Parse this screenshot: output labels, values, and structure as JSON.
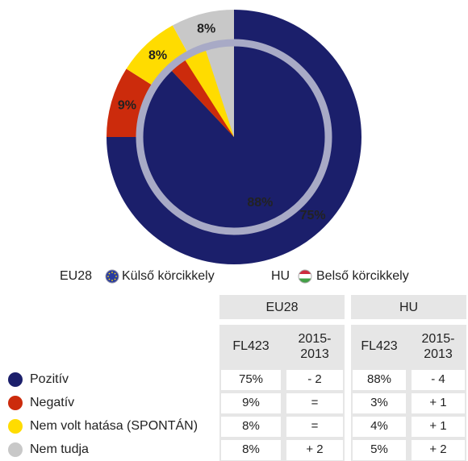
{
  "chart_data": {
    "type": "pie",
    "categories": [
      "Pozitív",
      "Negatív",
      "Nem volt hatása (SPONTÁN)",
      "Nem tudja"
    ],
    "colors": [
      "#1b1f6b",
      "#cc2b0c",
      "#ffdc00",
      "#c8c8c8"
    ],
    "series": [
      {
        "name": "EU28",
        "ring_label": "Külső körcikkely",
        "values": [
          75,
          9,
          8,
          8
        ],
        "value_labels": [
          "75%",
          "9%",
          "8%",
          "8%"
        ],
        "changes": [
          "- 2",
          "=",
          "=",
          "+ 2"
        ]
      },
      {
        "name": "HU",
        "ring_label": "Belső körcikkely",
        "values": [
          88,
          3,
          4,
          5
        ],
        "value_labels": [
          "88%",
          "3%",
          "4%",
          "5%"
        ],
        "changes": [
          "- 4",
          "+ 1",
          "+ 1",
          "+ 2"
        ]
      }
    ],
    "columns": [
      "FL423",
      "2015-\n2013"
    ]
  }
}
